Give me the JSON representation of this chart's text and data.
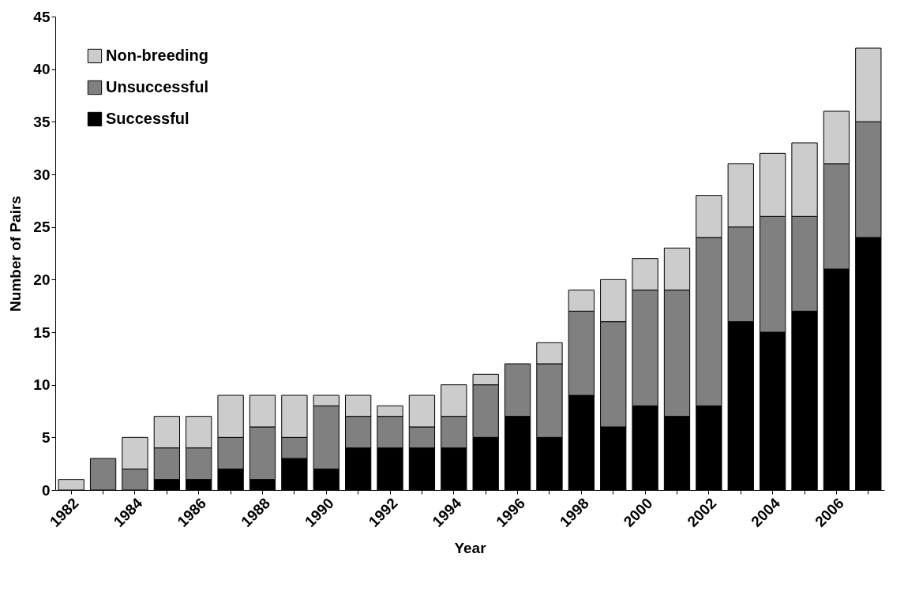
{
  "chart_data": {
    "type": "bar",
    "stacked": true,
    "xlabel": "Year",
    "ylabel": "Number of Pairs",
    "categories": [
      "1982",
      null,
      "1984",
      null,
      "1986",
      null,
      "1988",
      null,
      "1990",
      null,
      "1992",
      null,
      "1994",
      null,
      "1996",
      null,
      "1998",
      null,
      "2000",
      null,
      "2002",
      null,
      "2004",
      null,
      "2006",
      null
    ],
    "series": [
      {
        "name": "Successful",
        "color": "#000000",
        "values": [
          0,
          0,
          0,
          1,
          1,
          2,
          1,
          3,
          2,
          4,
          4,
          4,
          4,
          5,
          7,
          5,
          9,
          6,
          8,
          7,
          8,
          16,
          15,
          17,
          21,
          24
        ]
      },
      {
        "name": "Unsuccessful",
        "color": "#808080",
        "values": [
          0,
          3,
          2,
          3,
          3,
          3,
          5,
          2,
          6,
          3,
          3,
          2,
          3,
          5,
          5,
          7,
          8,
          10,
          11,
          12,
          16,
          9,
          11,
          9,
          10,
          11
        ]
      },
      {
        "name": "Non-breeding",
        "color": "#cccccc",
        "values": [
          1,
          0,
          3,
          3,
          3,
          4,
          3,
          4,
          1,
          2,
          1,
          3,
          3,
          1,
          0,
          2,
          2,
          4,
          3,
          4,
          4,
          6,
          6,
          7,
          5,
          7
        ]
      }
    ],
    "ylim": [
      0,
      45
    ],
    "yticks": [
      0,
      5,
      10,
      15,
      20,
      25,
      30,
      35,
      40,
      45
    ],
    "grid": false,
    "legend": "top left"
  }
}
